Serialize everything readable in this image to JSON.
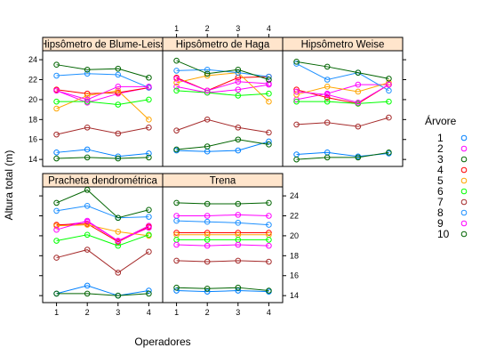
{
  "chart_data": {
    "type": "line",
    "layout": "lattice 3x2 panels",
    "xlabel": "Operadores",
    "ylabel": "Altura total (m)",
    "x": [
      1,
      2,
      3,
      4
    ],
    "x_ticks": [
      "1",
      "2",
      "3",
      "4"
    ],
    "ylim": [
      13.3,
      24.9
    ],
    "y_ticks": [
      "14",
      "16",
      "18",
      "20",
      "22",
      "24"
    ],
    "legend": {
      "title": "Árvore",
      "placement": "right",
      "entries": [
        "1",
        "2",
        "3",
        "4",
        "5",
        "6",
        "7",
        "8",
        "9",
        "10"
      ]
    },
    "series_colors": [
      "#0080ff",
      "#ff00ff",
      "#006400",
      "#ff0000",
      "#ffa500",
      "#00ff00",
      "#a52a2a",
      "#1e90ff",
      "#ff00ff",
      "#006400"
    ],
    "panels": [
      {
        "title": "Hipsômetro de Blume-Leiss",
        "series": [
          {
            "name": "1",
            "values": [
              14.7,
              15.0,
              14.3,
              14.6
            ]
          },
          {
            "name": "2",
            "values": [
              20.9,
              19.7,
              20.6,
              21.2
            ]
          },
          {
            "name": "3",
            "values": [
              14.1,
              14.2,
              14.1,
              14.2
            ]
          },
          {
            "name": "4",
            "values": [
              21.0,
              20.6,
              20.7,
              21.2
            ]
          },
          {
            "name": "5",
            "values": [
              19.1,
              20.4,
              20.9,
              18.0
            ]
          },
          {
            "name": "6",
            "values": [
              19.8,
              19.8,
              19.5,
              20.0
            ]
          },
          {
            "name": "7",
            "values": [
              16.5,
              17.2,
              16.6,
              17.2
            ]
          },
          {
            "name": "8",
            "values": [
              22.4,
              22.6,
              22.5,
              21.2
            ]
          },
          {
            "name": "9",
            "values": [
              20.9,
              20.0,
              21.3,
              21.3
            ]
          },
          {
            "name": "10",
            "values": [
              23.5,
              23.0,
              23.1,
              22.2
            ]
          }
        ]
      },
      {
        "title": "Hipsômetro de Haga",
        "series": [
          {
            "name": "1",
            "values": [
              14.9,
              14.8,
              14.9,
              15.8
            ]
          },
          {
            "name": "2",
            "values": [
              21.3,
              20.7,
              21.0,
              21.5
            ]
          },
          {
            "name": "3",
            "values": [
              15.0,
              15.3,
              16.0,
              15.5
            ]
          },
          {
            "name": "4",
            "values": [
              22.2,
              20.9,
              22.2,
              22.3
            ]
          },
          {
            "name": "5",
            "values": [
              21.7,
              22.4,
              22.7,
              19.8
            ]
          },
          {
            "name": "6",
            "values": [
              20.9,
              20.7,
              20.4,
              20.6
            ]
          },
          {
            "name": "7",
            "values": [
              16.9,
              18.0,
              17.2,
              16.7
            ]
          },
          {
            "name": "8",
            "values": [
              22.9,
              23.0,
              22.7,
              22.3
            ]
          },
          {
            "name": "9",
            "values": [
              22.1,
              20.9,
              21.8,
              21.6
            ]
          },
          {
            "name": "10",
            "values": [
              23.9,
              22.6,
              23.0,
              22.0
            ]
          }
        ]
      },
      {
        "title": "Hipsômetro Weise",
        "series": [
          {
            "name": "1",
            "values": [
              14.5,
              14.7,
              14.3,
              14.6
            ]
          },
          {
            "name": "2",
            "values": [
              20.0,
              20.6,
              21.5,
              21.5
            ]
          },
          {
            "name": "3",
            "values": [
              14.0,
              14.2,
              14.2,
              14.7
            ]
          },
          {
            "name": "4",
            "values": [
              21.0,
              20.2,
              19.6,
              21.5
            ]
          },
          {
            "name": "5",
            "values": [
              20.5,
              21.3,
              20.8,
              21.7
            ]
          },
          {
            "name": "6",
            "values": [
              19.8,
              19.8,
              19.6,
              19.8
            ]
          },
          {
            "name": "7",
            "values": [
              17.5,
              17.7,
              17.3,
              18.2
            ]
          },
          {
            "name": "8",
            "values": [
              23.6,
              22.0,
              22.7,
              20.9
            ]
          },
          {
            "name": "9",
            "values": [
              20.8,
              20.5,
              19.7,
              21.5
            ]
          },
          {
            "name": "10",
            "values": [
              23.8,
              23.3,
              22.7,
              22.1
            ]
          }
        ]
      },
      {
        "title": "Pracheta dendrométrica",
        "series": [
          {
            "name": "1",
            "values": [
              14.2,
              15.0,
              14.0,
              14.5
            ]
          },
          {
            "name": "2",
            "values": [
              21.0,
              21.4,
              19.5,
              21.0
            ]
          },
          {
            "name": "3",
            "values": [
              14.2,
              14.2,
              14.0,
              14.2
            ]
          },
          {
            "name": "4",
            "values": [
              21.1,
              21.2,
              19.4,
              20.9
            ]
          },
          {
            "name": "5",
            "values": [
              21.0,
              21.1,
              20.4,
              20.0
            ]
          },
          {
            "name": "6",
            "values": [
              19.5,
              20.1,
              19.0,
              20.1
            ]
          },
          {
            "name": "7",
            "values": [
              17.8,
              18.6,
              16.3,
              18.4
            ]
          },
          {
            "name": "8",
            "values": [
              22.5,
              23.0,
              21.8,
              21.9
            ]
          },
          {
            "name": "9",
            "values": [
              20.6,
              21.5,
              19.5,
              20.8
            ]
          },
          {
            "name": "10",
            "values": [
              23.3,
              24.6,
              21.8,
              22.6
            ]
          }
        ]
      },
      {
        "title": "Trena",
        "series": [
          {
            "name": "1",
            "values": [
              14.5,
              14.4,
              14.5,
              14.4
            ]
          },
          {
            "name": "2",
            "values": [
              22.0,
              22.0,
              22.1,
              22.0
            ]
          },
          {
            "name": "3",
            "values": [
              14.8,
              14.7,
              14.8,
              14.5
            ]
          },
          {
            "name": "4",
            "values": [
              20.3,
              20.3,
              20.3,
              20.3
            ]
          },
          {
            "name": "5",
            "values": [
              20.1,
              20.1,
              20.1,
              20.1
            ]
          },
          {
            "name": "6",
            "values": [
              19.6,
              19.6,
              19.6,
              19.6
            ]
          },
          {
            "name": "7",
            "values": [
              17.5,
              17.4,
              17.5,
              17.4
            ]
          },
          {
            "name": "8",
            "values": [
              21.5,
              21.4,
              21.3,
              21.1
            ]
          },
          {
            "name": "9",
            "values": [
              19.1,
              19.0,
              19.1,
              19.0
            ]
          },
          {
            "name": "10",
            "values": [
              23.3,
              23.2,
              23.2,
              23.3
            ]
          }
        ]
      }
    ]
  }
}
